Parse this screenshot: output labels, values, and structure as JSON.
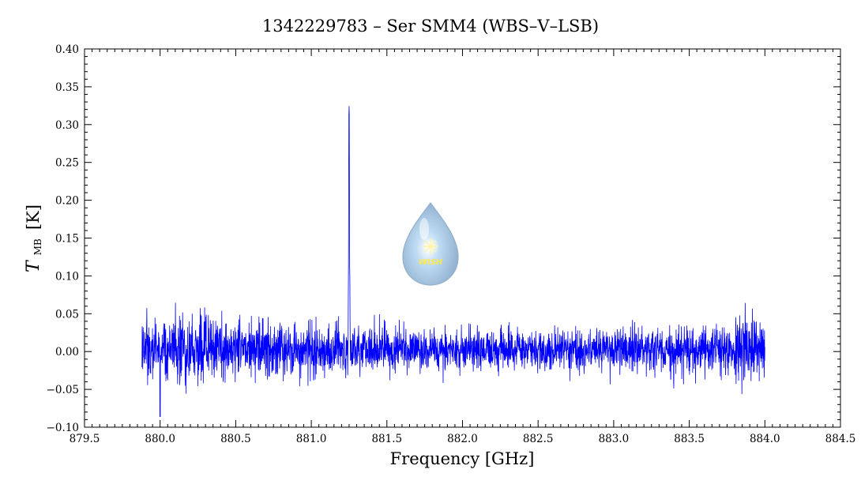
{
  "chart_data": {
    "type": "line",
    "title": "1342229783 – Ser SMM4 (WBS–V–LSB)",
    "xlabel": "Frequency [GHz]",
    "ylabel": {
      "main": "T",
      "sub": "MB",
      "unit": "[K]"
    },
    "xlim": [
      879.5,
      884.5
    ],
    "ylim": [
      -0.1,
      0.4
    ],
    "x_ticks": [
      879.5,
      880.0,
      880.5,
      881.0,
      881.5,
      882.0,
      882.5,
      883.0,
      883.5,
      884.0,
      884.5
    ],
    "x_tick_labels": [
      "879.5",
      "880.0",
      "880.5",
      "881.0",
      "881.5",
      "882.0",
      "882.5",
      "883.0",
      "883.5",
      "884.0",
      "884.5"
    ],
    "y_ticks": [
      -0.1,
      -0.05,
      0.0,
      0.05,
      0.1,
      0.15,
      0.2,
      0.25,
      0.3,
      0.35,
      0.4
    ],
    "y_tick_labels": [
      "−0.10",
      "−0.05",
      "0.00",
      "0.05",
      "0.10",
      "0.15",
      "0.20",
      "0.25",
      "0.30",
      "0.35",
      "0.40"
    ],
    "grid": false,
    "series": [
      {
        "color": "#0000ff",
        "x_range": [
          879.88,
          884.0
        ],
        "baseline": 0.0,
        "noise_rms_left": 0.022,
        "noise_rms_right": 0.013,
        "line_peak_x": 881.25,
        "line_peak_y": 0.36,
        "min_value": -0.086,
        "min_value_x": 880.0
      }
    ]
  },
  "logo": {
    "text": "WISH"
  }
}
